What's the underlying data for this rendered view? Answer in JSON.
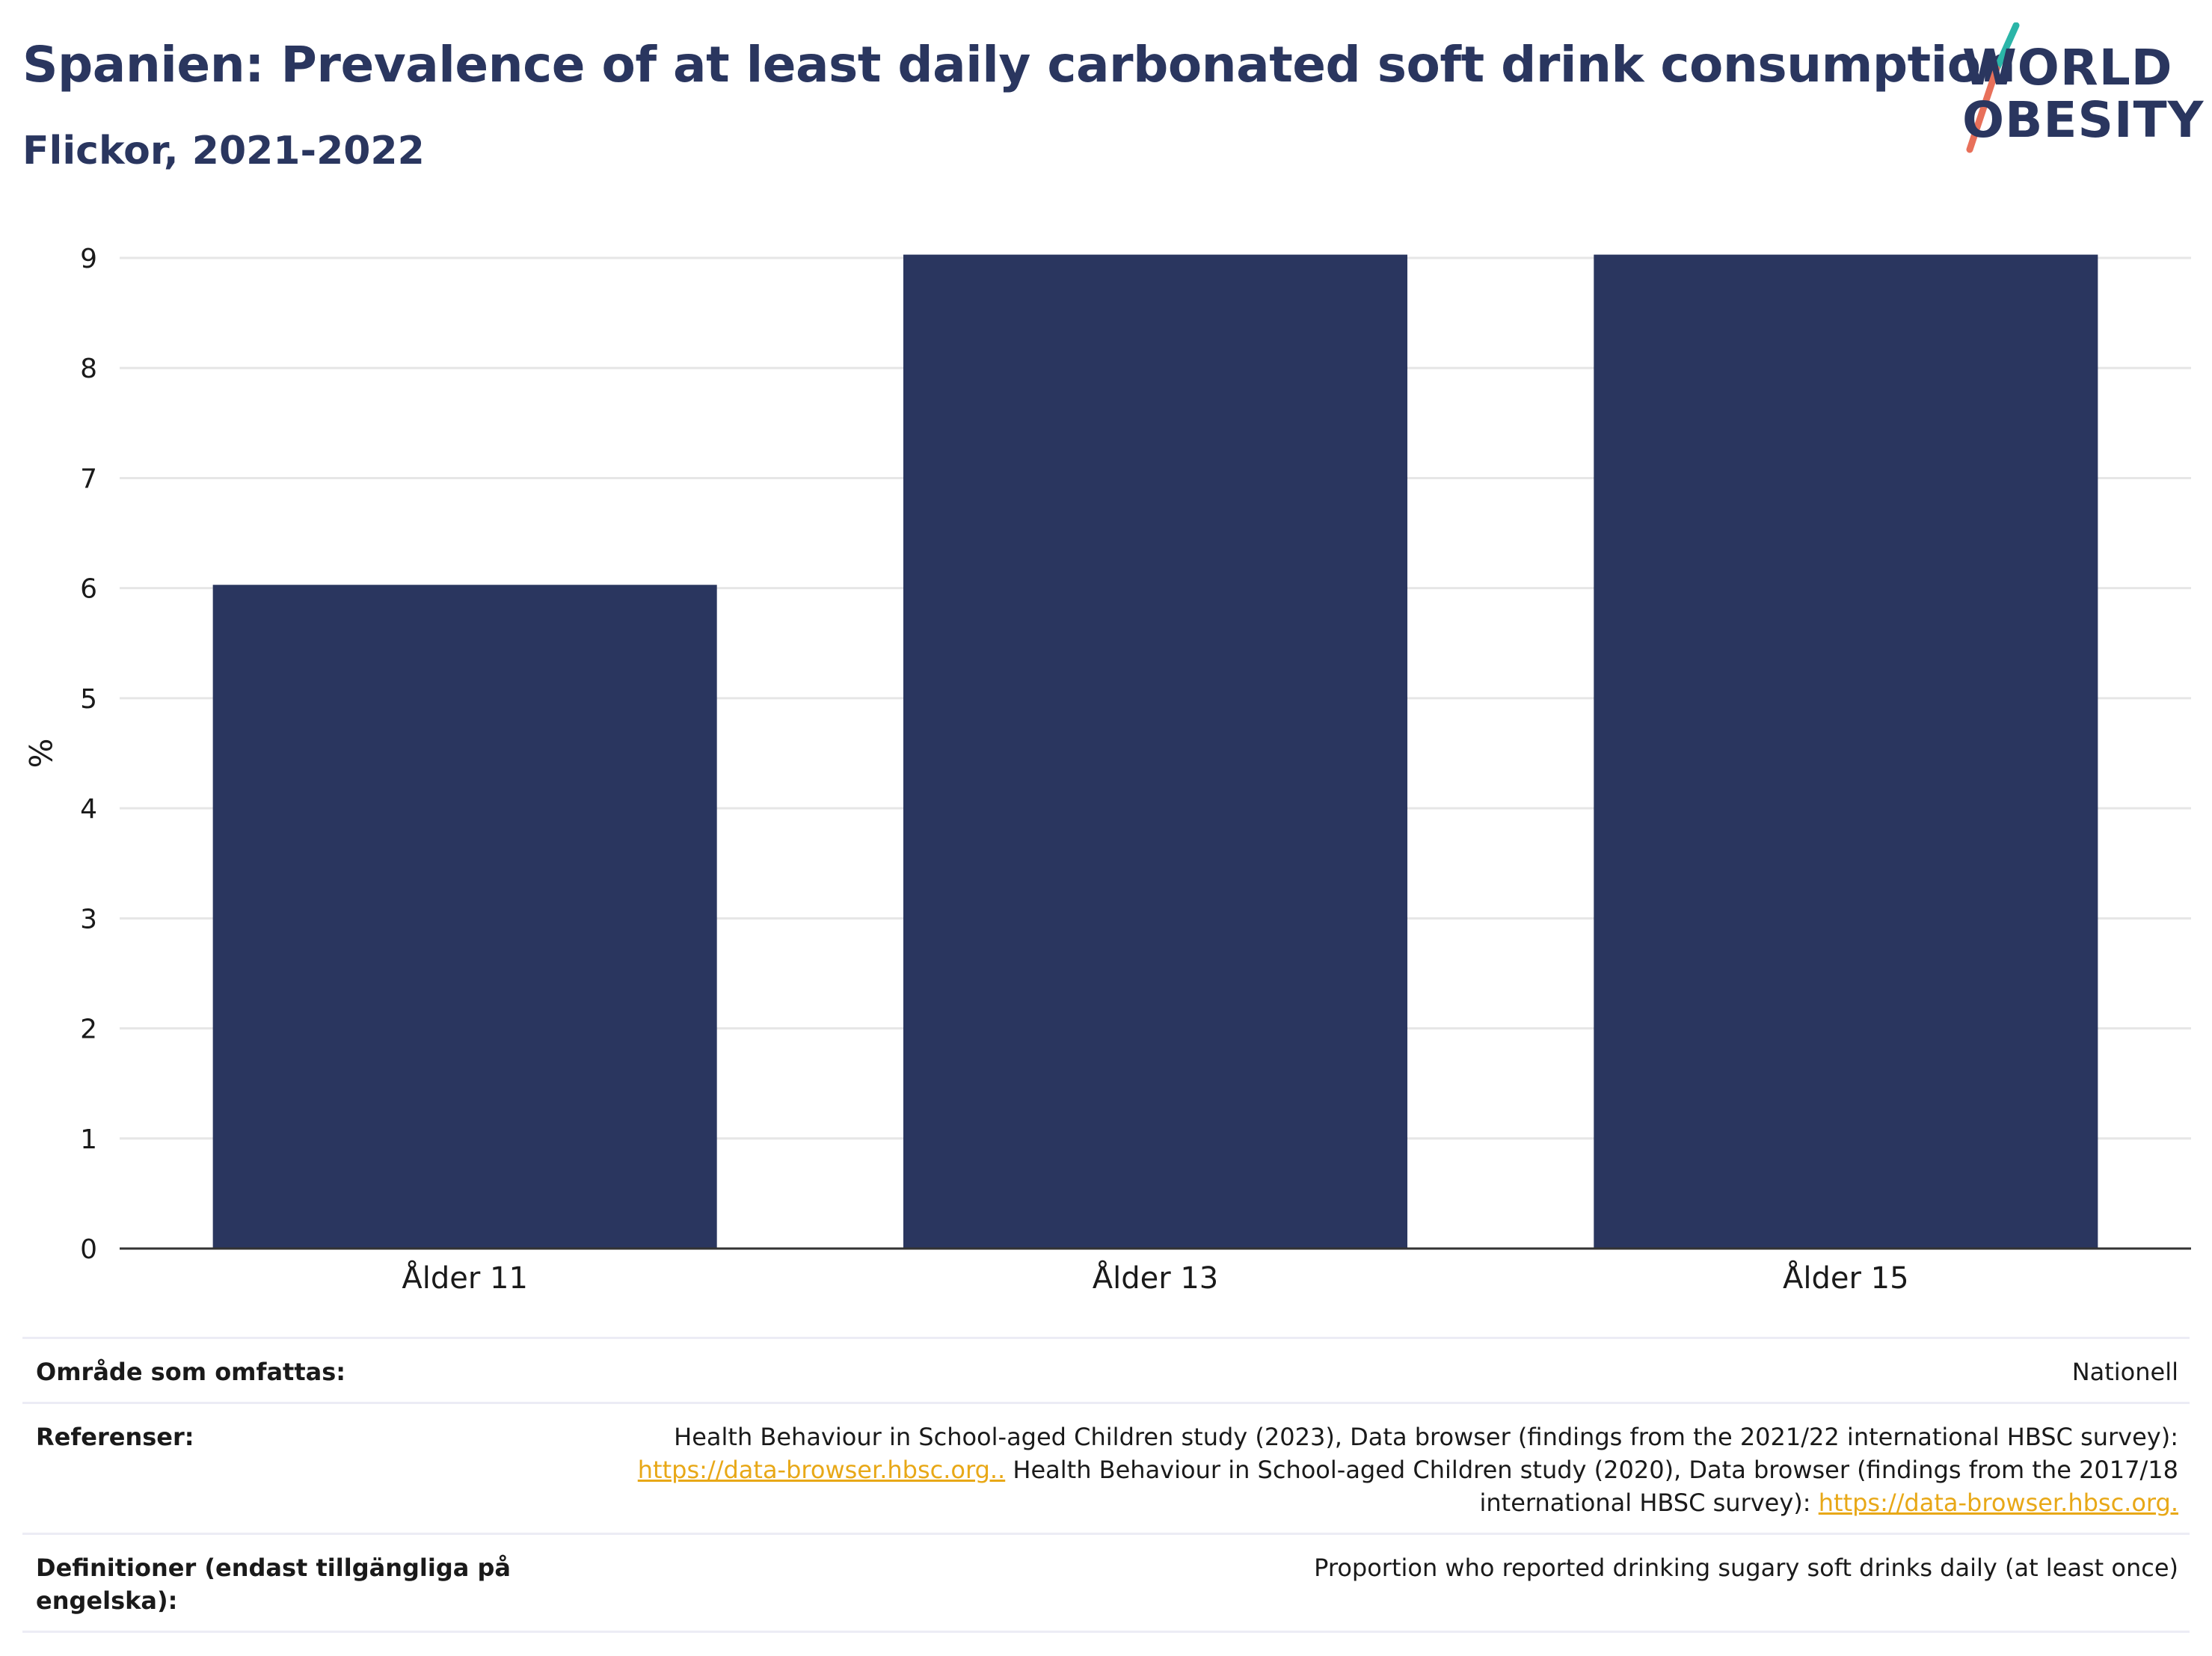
{
  "title": "Spanien: Prevalence of at least daily carbonated soft drink consumption",
  "subtitle": "Flickor, 2021-2022",
  "logo": {
    "line1": "WORLD",
    "line2": "OBESITY",
    "colors": {
      "teal": "#2bb5a8",
      "coral": "#e8705a",
      "navy": "#2a365f"
    }
  },
  "chart_data": {
    "type": "bar",
    "categories": [
      "Ålder 11",
      "Ålder 13",
      "Ålder 15"
    ],
    "values": [
      6.03,
      9.03,
      9.03
    ],
    "ylabel": "%",
    "xlabel": "",
    "ylim": [
      0,
      9
    ],
    "yticks": [
      "0",
      "1",
      "2",
      "3",
      "4",
      "5",
      "6",
      "7",
      "8",
      "9"
    ],
    "bar_color": "#2a365f",
    "grid": true
  },
  "info": {
    "rows": [
      {
        "label": "Område som omfattas:",
        "value": "Nationell"
      },
      {
        "label": "Referenser:",
        "value_parts": [
          "Health Behaviour in School-aged Children study (2023), Data browser (findings from the 2021/22 international HBSC survey): ",
          "https://data-browser.hbsc.org..",
          " Health Behaviour in School-aged Children study (2020), Data browser (findings from the 2017/18 international HBSC survey): ",
          "https://data-browser.hbsc.org."
        ]
      },
      {
        "label": "Definitioner (endast tillgängliga på engelska):",
        "value": "Proportion who reported drinking sugary soft drinks daily (at least once)"
      }
    ]
  }
}
